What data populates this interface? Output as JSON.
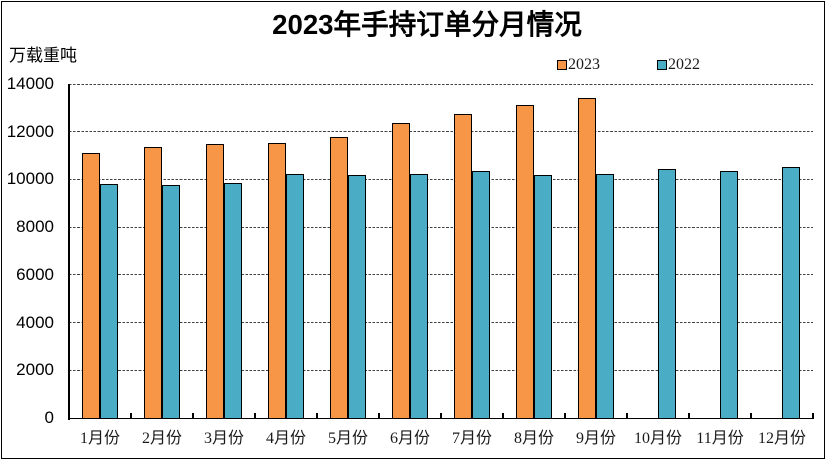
{
  "chart_data": {
    "type": "bar",
    "title": "2023年手持订单分月情况",
    "ylabel": "万载重吨",
    "xlabel": "",
    "categories": [
      "1月份",
      "2月份",
      "3月份",
      "4月份",
      "5月份",
      "6月份",
      "7月份",
      "8月份",
      "9月份",
      "10月份",
      "11月份",
      "12月份"
    ],
    "series": [
      {
        "name": "2023",
        "color": "#F79646",
        "values": [
          11100,
          11350,
          11470,
          11520,
          11760,
          12360,
          12750,
          13140,
          13430,
          null,
          null,
          null
        ]
      },
      {
        "name": "2022",
        "color": "#4BACC6",
        "values": [
          9820,
          9780,
          9870,
          10230,
          10180,
          10240,
          10340,
          10170,
          10220,
          10460,
          10340,
          10540
        ]
      }
    ],
    "ylim": [
      0,
      14000
    ],
    "yticks": [
      0,
      2000,
      4000,
      6000,
      8000,
      10000,
      12000,
      14000
    ],
    "grid": "horizontal-dashed",
    "legend_position": "top",
    "bar_outline_color": "#000000",
    "gridline_color": "#404040",
    "axis_color": "#000000",
    "background_color": "#FFFFFF"
  }
}
